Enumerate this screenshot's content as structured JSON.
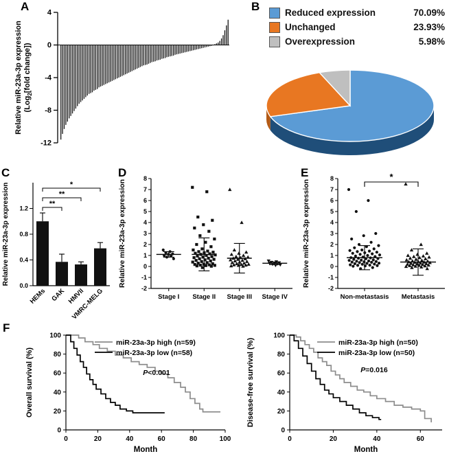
{
  "panels": {
    "A": "A",
    "B": "B",
    "C": "C",
    "D": "D",
    "E": "E",
    "F": "F"
  },
  "chart_data": [
    {
      "id": "waterfall",
      "panel": "A",
      "type": "bar",
      "ylabel_line1": "Relative miR-23a-3p expression",
      "ylabel_line2": "(Log2[fold change])",
      "ylim": [
        -12,
        4
      ],
      "yticks": [
        4,
        0,
        -4,
        -8,
        -12
      ],
      "values": [
        -11.6,
        -10.9,
        -10.3,
        -9.8,
        -9.4,
        -9.0,
        -8.7,
        -8.4,
        -8.1,
        -7.8,
        -7.5,
        -7.2,
        -7.0,
        -6.8,
        -6.6,
        -6.4,
        -6.2,
        -6.0,
        -5.9,
        -5.8,
        -5.6,
        -5.5,
        -5.4,
        -5.2,
        -5.1,
        -5.0,
        -4.9,
        -4.8,
        -4.7,
        -4.6,
        -4.5,
        -4.4,
        -4.3,
        -4.2,
        -4.1,
        -4.0,
        -3.9,
        -3.8,
        -3.7,
        -3.6,
        -3.5,
        -3.4,
        -3.3,
        -3.2,
        -3.1,
        -3.0,
        -2.9,
        -2.8,
        -2.7,
        -2.6,
        -2.5,
        -2.45,
        -2.4,
        -2.3,
        -2.2,
        -2.1,
        -2.05,
        -2.0,
        -1.9,
        -1.85,
        -1.8,
        -1.7,
        -1.65,
        -1.6,
        -1.5,
        -1.45,
        -1.4,
        -1.35,
        -1.3,
        -1.2,
        -1.15,
        -1.1,
        -1.05,
        -1.0,
        -0.95,
        -0.9,
        -0.85,
        -0.8,
        -0.75,
        -0.7,
        -0.65,
        -0.6,
        -0.55,
        -0.5,
        -0.45,
        -0.4,
        -0.35,
        -0.3,
        -0.25,
        -0.2,
        -0.15,
        -0.1,
        -0.05,
        0.1,
        0.2,
        0.3,
        0.5,
        0.8,
        1.2,
        1.8,
        2.4,
        3.1
      ]
    },
    {
      "id": "pie",
      "panel": "B",
      "type": "pie",
      "slices": [
        {
          "label": "Reduced expression",
          "pct": "70.09%",
          "value": 70.09,
          "color": "#5b9bd5",
          "side": "#1f4e79"
        },
        {
          "label": "Unchanged",
          "pct": "23.93%",
          "value": 23.93,
          "color": "#e87722",
          "side": "#b35a15"
        },
        {
          "label": "Overexpression",
          "pct": "5.98%",
          "value": 5.98,
          "color": "#bfbfbf",
          "side": "#8c8c8c"
        }
      ]
    },
    {
      "id": "celllines",
      "panel": "C",
      "type": "bar",
      "ylabel": "Relative miR-23a-3p expression",
      "categories": [
        "HEMs",
        "GAK",
        "HMVII",
        "VMRC-MELG"
      ],
      "values": [
        1.0,
        0.37,
        0.33,
        0.58
      ],
      "errors": [
        0.13,
        0.12,
        0.04,
        0.09
      ],
      "ylim": [
        0,
        1.6
      ],
      "yticks": [
        0,
        0.4,
        0.8,
        1.2
      ],
      "significance": [
        {
          "from": 0,
          "to": 1,
          "label": "**"
        },
        {
          "from": 0,
          "to": 2,
          "label": "**"
        },
        {
          "from": 0,
          "to": 3,
          "label": "*"
        }
      ]
    },
    {
      "id": "stages",
      "panel": "D",
      "type": "scatter",
      "ylabel": "Relative miR-23a-3p expression",
      "ylim": [
        -2,
        8
      ],
      "yticks": [
        -2,
        -1,
        0,
        1,
        2,
        3,
        4,
        5,
        6,
        7,
        8
      ],
      "groups": [
        {
          "label": "Stage I",
          "marker": "circle",
          "mean": 1.1,
          "sd": 0.25,
          "values": [
            1.5,
            1.35,
            1.25,
            1.15,
            1.1,
            1.0,
            0.95,
            0.85,
            0.7
          ]
        },
        {
          "label": "Stage II",
          "marker": "square",
          "mean": 1.1,
          "sd": 1.5,
          "values": [
            7.2,
            6.8,
            4.5,
            4.2,
            3.8,
            3.5,
            3.2,
            2.8,
            2.5,
            2.2,
            2.0,
            1.8,
            1.6,
            1.5,
            1.4,
            1.35,
            1.3,
            1.25,
            1.2,
            1.15,
            1.1,
            1.05,
            1.0,
            0.95,
            0.9,
            0.85,
            0.8,
            0.75,
            0.7,
            0.65,
            0.6,
            0.55,
            0.5,
            0.45,
            0.4,
            0.35,
            0.3,
            0.25,
            0.2,
            0.18,
            0.15,
            0.12,
            0.1,
            0.08,
            0.05,
            0.02,
            -0.1
          ]
        },
        {
          "label": "Stage III",
          "marker": "tri",
          "mean": 0.75,
          "sd": 1.35,
          "values": [
            7.0,
            4.0,
            1.5,
            1.3,
            1.2,
            1.1,
            1.0,
            0.9,
            0.85,
            0.8,
            0.75,
            0.7,
            0.65,
            0.6,
            0.55,
            0.5,
            0.45,
            0.4,
            0.35,
            0.3,
            0.25,
            0.2,
            0.18,
            0.15,
            0.12,
            0.1,
            0.05,
            0.02
          ]
        },
        {
          "label": "Stage IV",
          "marker": "tridown",
          "mean": 0.29,
          "sd": 0.12,
          "values": [
            0.5,
            0.42,
            0.38,
            0.33,
            0.3,
            0.27,
            0.23,
            0.2,
            0.15,
            0.1
          ]
        }
      ]
    },
    {
      "id": "metastasis",
      "panel": "E",
      "type": "scatter",
      "ylabel": "Relative miR-23a-3p expression",
      "ylim": [
        -2,
        8
      ],
      "yticks": [
        -2,
        -1,
        0,
        1,
        2,
        3,
        4,
        5,
        6,
        7,
        8
      ],
      "significance": "*",
      "groups": [
        {
          "label": "Non-metastasis",
          "marker": "circle",
          "mean": 0.8,
          "sd": 1.1,
          "values": [
            7.0,
            6.0,
            5.0,
            3.0,
            2.8,
            2.5,
            2.2,
            2.0,
            1.9,
            1.8,
            1.7,
            1.6,
            1.5,
            1.45,
            1.4,
            1.35,
            1.3,
            1.25,
            1.2,
            1.15,
            1.1,
            1.05,
            1.0,
            0.95,
            0.9,
            0.85,
            0.8,
            0.78,
            0.75,
            0.72,
            0.7,
            0.65,
            0.6,
            0.58,
            0.55,
            0.5,
            0.48,
            0.45,
            0.42,
            0.4,
            0.38,
            0.35,
            0.3,
            0.28,
            0.25,
            0.22,
            0.2,
            0.15,
            0.12,
            0.1,
            0.08,
            0.05,
            0.02,
            -0.1,
            -0.2
          ]
        },
        {
          "label": "Metastasis",
          "marker": "tri",
          "mean": 0.4,
          "sd": 1.2,
          "values": [
            7.5,
            2.0,
            1.5,
            1.2,
            1.1,
            1.0,
            0.95,
            0.9,
            0.85,
            0.8,
            0.75,
            0.7,
            0.65,
            0.6,
            0.55,
            0.5,
            0.48,
            0.45,
            0.42,
            0.4,
            0.38,
            0.35,
            0.3,
            0.28,
            0.25,
            0.22,
            0.2,
            0.18,
            0.15,
            0.12,
            0.1,
            0.08,
            0.05,
            0.02,
            0.0,
            -0.05,
            -0.1,
            -0.2
          ]
        }
      ]
    },
    {
      "id": "os",
      "panel": "F",
      "type": "line",
      "ylabel": "Overall survival (%)",
      "xlabel": "Month",
      "xlim": [
        0,
        100
      ],
      "ylim": [
        0,
        100
      ],
      "xticks": [
        0,
        20,
        40,
        60,
        80,
        100
      ],
      "yticks": [
        0,
        20,
        40,
        60,
        80,
        100
      ],
      "pvalue": "P<0.001",
      "series": [
        {
          "name": "miR-23a-3p high (n=59)",
          "color": "#8c8c8c",
          "points": [
            [
              0,
              100
            ],
            [
              8,
              97
            ],
            [
              12,
              93
            ],
            [
              17,
              90
            ],
            [
              21,
              86
            ],
            [
              26,
              83
            ],
            [
              31,
              79
            ],
            [
              36,
              76
            ],
            [
              41,
              72
            ],
            [
              46,
              69
            ],
            [
              51,
              66
            ],
            [
              56,
              62
            ],
            [
              60,
              59
            ],
            [
              64,
              55
            ],
            [
              68,
              50
            ],
            [
              72,
              45
            ],
            [
              75,
              40
            ],
            [
              78,
              33
            ],
            [
              81,
              28
            ],
            [
              84,
              22
            ],
            [
              86,
              19
            ],
            [
              97,
              19
            ]
          ]
        },
        {
          "name": "miR-23a-3p low (n=58)",
          "color": "#000000",
          "points": [
            [
              0,
              100
            ],
            [
              3,
              93
            ],
            [
              5,
              86
            ],
            [
              7,
              79
            ],
            [
              9,
              72
            ],
            [
              11,
              66
            ],
            [
              13,
              59
            ],
            [
              15,
              53
            ],
            [
              17,
              48
            ],
            [
              19,
              43
            ],
            [
              22,
              38
            ],
            [
              25,
              33
            ],
            [
              28,
              29
            ],
            [
              31,
              26
            ],
            [
              34,
              22
            ],
            [
              38,
              20
            ],
            [
              42,
              18
            ],
            [
              62,
              18
            ]
          ]
        }
      ]
    },
    {
      "id": "dfs",
      "panel": "F",
      "type": "line",
      "ylabel": "Disease-free survival (%)",
      "xlabel": "Month",
      "xlim": [
        0,
        70
      ],
      "ylim": [
        0,
        100
      ],
      "xticks": [
        0,
        20,
        40,
        60
      ],
      "yticks": [
        0,
        20,
        40,
        60,
        80,
        100
      ],
      "pvalue": "P=0.016",
      "series": [
        {
          "name": "miR-23a-3p high (n=50)",
          "color": "#8c8c8c",
          "points": [
            [
              0,
              100
            ],
            [
              3,
              98
            ],
            [
              5,
              94
            ],
            [
              7,
              90
            ],
            [
              9,
              86
            ],
            [
              11,
              82
            ],
            [
              13,
              76
            ],
            [
              15,
              72
            ],
            [
              17,
              68
            ],
            [
              19,
              62
            ],
            [
              21,
              58
            ],
            [
              23,
              54
            ],
            [
              25,
              50
            ],
            [
              28,
              46
            ],
            [
              31,
              42
            ],
            [
              34,
              40
            ],
            [
              37,
              36
            ],
            [
              40,
              33
            ],
            [
              44,
              30
            ],
            [
              48,
              26
            ],
            [
              52,
              24
            ],
            [
              56,
              22
            ],
            [
              60,
              20
            ],
            [
              62,
              12
            ],
            [
              65,
              8
            ]
          ]
        },
        {
          "name": "miR-23a-3p low (n=50)",
          "color": "#000000",
          "points": [
            [
              0,
              100
            ],
            [
              2,
              94
            ],
            [
              4,
              86
            ],
            [
              6,
              78
            ],
            [
              8,
              70
            ],
            [
              10,
              62
            ],
            [
              12,
              54
            ],
            [
              14,
              48
            ],
            [
              16,
              42
            ],
            [
              18,
              38
            ],
            [
              20,
              34
            ],
            [
              23,
              30
            ],
            [
              26,
              26
            ],
            [
              29,
              22
            ],
            [
              32,
              18
            ],
            [
              35,
              15
            ],
            [
              38,
              13
            ],
            [
              41,
              11
            ],
            [
              42,
              11
            ]
          ]
        }
      ]
    }
  ]
}
